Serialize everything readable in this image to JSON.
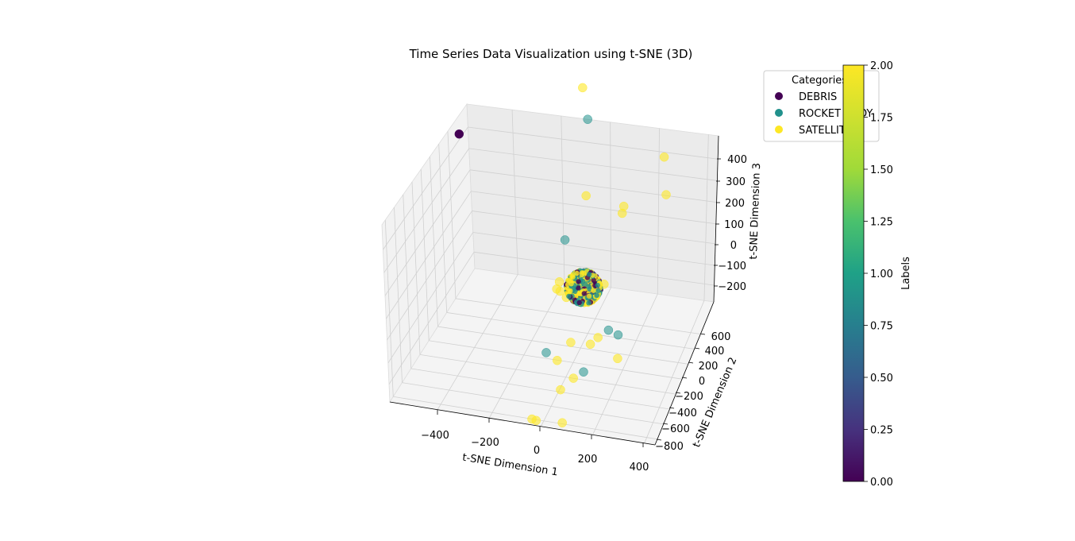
{
  "chart_data": {
    "type": "scatter",
    "projection": "3d",
    "title": "Time Series Data Visualization using t-SNE (3D)",
    "xlabel": "t-SNE Dimension 1",
    "ylabel": "t-SNE Dimension 2",
    "zlabel": "t-SNE Dimension 3",
    "x_ticks": [
      "−400",
      "−200",
      "0",
      "200",
      "400"
    ],
    "y_ticks": [
      "600",
      "400",
      "200",
      "0",
      "−200",
      "−400",
      "−600",
      "−800"
    ],
    "z_ticks": [
      "400",
      "300",
      "200",
      "100",
      "0",
      "−100",
      "−200"
    ],
    "grid": true,
    "legend": {
      "title": "Categories",
      "placement": "upper-right",
      "entries": [
        {
          "label": "DEBRIS",
          "color": "#440154"
        },
        {
          "label": "ROCKET BODY",
          "color": "#21918c"
        },
        {
          "label": "SATELLITE",
          "color": "#fde725"
        }
      ]
    },
    "colorbar": {
      "label": "Labels",
      "colormap": "viridis",
      "ticks": [
        "0.00",
        "0.25",
        "0.50",
        "0.75",
        "1.00",
        "1.25",
        "1.50",
        "1.75",
        "2.00"
      ],
      "range": [
        0,
        2
      ]
    },
    "dense_cluster": {
      "center": [
        0,
        0,
        0
      ],
      "categories": [
        "DEBRIS",
        "ROCKET BODY",
        "SATELLITE"
      ]
    },
    "series": [
      {
        "name": "DEBRIS",
        "label": 0,
        "points": [
          [
            -560,
            260,
            180
          ]
        ]
      },
      {
        "name": "ROCKET BODY",
        "label": 1,
        "points": [
          [
            -20,
            160,
            300
          ],
          [
            -60,
            -30,
            110
          ],
          [
            120,
            -80,
            -50
          ],
          [
            -90,
            -200,
            -70
          ],
          [
            40,
            -150,
            -120
          ],
          [
            170,
            -120,
            -40
          ]
        ]
      },
      {
        "name": "SATELLITE",
        "label": 2,
        "points": [
          [
            -50,
            200,
            350
          ],
          [
            -20,
            120,
            150
          ],
          [
            140,
            60,
            150
          ],
          [
            150,
            50,
            170
          ],
          [
            320,
            30,
            300
          ],
          [
            340,
            -20,
            240
          ],
          [
            100,
            -60,
            40
          ],
          [
            -200,
            300,
            -140
          ],
          [
            -140,
            150,
            -80
          ],
          [
            -100,
            100,
            -70
          ],
          [
            -120,
            80,
            -30
          ],
          [
            160,
            -100,
            -100
          ],
          [
            60,
            -120,
            -70
          ],
          [
            100,
            -150,
            -40
          ],
          [
            -30,
            -80,
            -90
          ],
          [
            -60,
            -160,
            -100
          ],
          [
            -10,
            -120,
            -150
          ],
          [
            -40,
            -190,
            -150
          ],
          [
            -120,
            -250,
            -200
          ],
          [
            -130,
            -270,
            -190
          ],
          [
            -20,
            -240,
            -200
          ]
        ]
      }
    ]
  }
}
